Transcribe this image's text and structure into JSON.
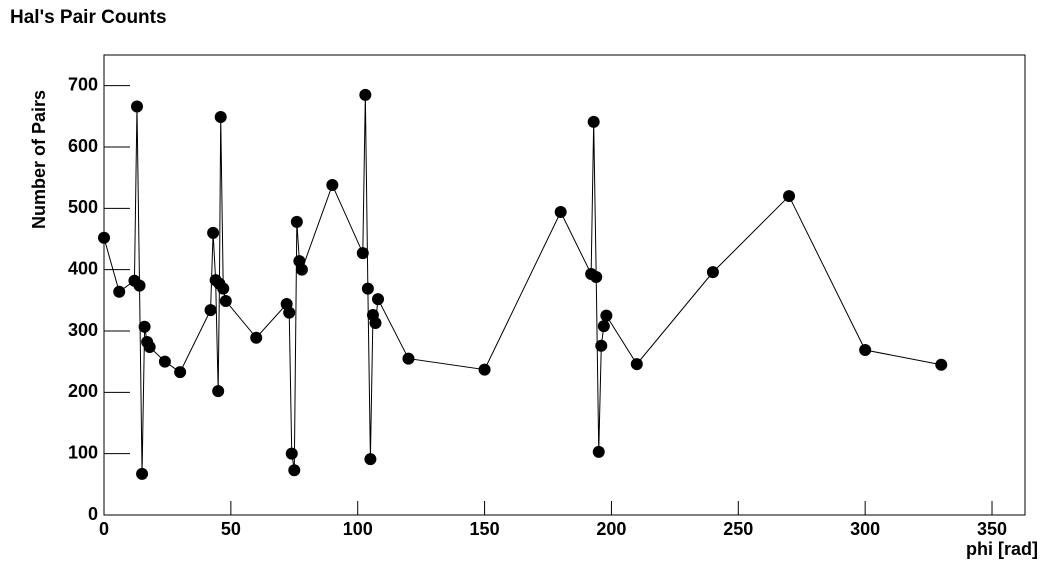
{
  "chart_data": {
    "type": "line",
    "title": "Hal's Pair Counts",
    "x_label": "phi [rad]",
    "y_label": "Number of Pairs",
    "color": "#000000",
    "x": [
      0,
      6,
      12,
      13,
      14,
      15,
      16,
      17,
      18,
      24,
      30,
      42,
      43,
      44,
      45,
      45.5,
      46,
      47,
      48,
      60,
      72,
      73,
      74,
      75,
      76,
      77,
      78,
      90,
      102,
      103,
      104,
      105,
      106,
      107,
      108,
      120,
      150,
      180,
      192,
      193,
      194,
      195,
      196,
      197,
      198,
      210,
      240,
      270,
      300,
      330
    ],
    "values": [
      452,
      364,
      382,
      666,
      374,
      67,
      307,
      282,
      274,
      250,
      233,
      334,
      460,
      383,
      202,
      377,
      649,
      369,
      349,
      289,
      344,
      330,
      100,
      73,
      478,
      414,
      400,
      538,
      427,
      685,
      369,
      91,
      326,
      313,
      352,
      255,
      237,
      494,
      393,
      641,
      388,
      103,
      276,
      308,
      325,
      246,
      396,
      520,
      269,
      245
    ],
    "xlim": [
      0,
      363
    ],
    "ylim": [
      0,
      750
    ],
    "xticks": [
      0,
      50,
      100,
      150,
      200,
      250,
      300,
      350
    ],
    "yticks": [
      0,
      100,
      200,
      300,
      400,
      500,
      600,
      700
    ]
  }
}
